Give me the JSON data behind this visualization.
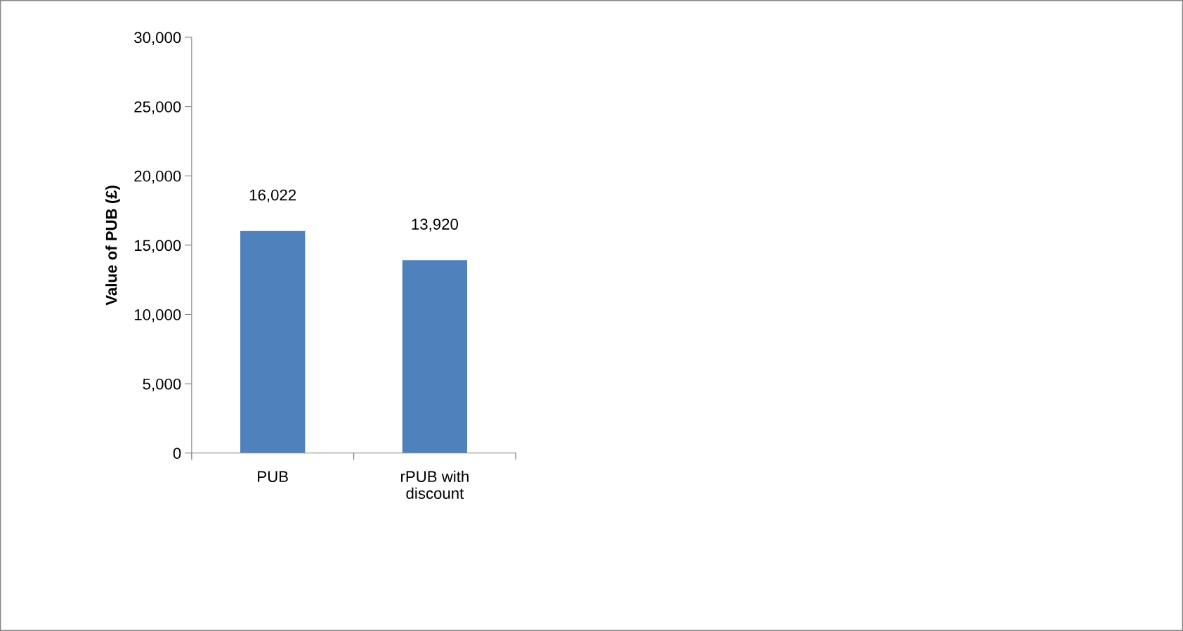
{
  "chart_data": {
    "type": "bar",
    "ylabel": "Value of PUB (£)",
    "categories": [
      "PUB",
      "rPUB with\ndiscount"
    ],
    "values": [
      16022,
      13920
    ],
    "value_labels": [
      "16,022",
      "13,920"
    ],
    "color": "#4f81bd",
    "ylim": [
      0,
      30000
    ],
    "yticks": [
      {
        "value": 0,
        "label": "0"
      },
      {
        "value": 5000,
        "label": "5,000"
      },
      {
        "value": 10000,
        "label": "10,000"
      },
      {
        "value": 15000,
        "label": "15,000"
      },
      {
        "value": 20000,
        "label": "20,000"
      },
      {
        "value": 25000,
        "label": "25,000"
      },
      {
        "value": 30000,
        "label": "30,000"
      }
    ],
    "grid": false,
    "legend": false
  }
}
